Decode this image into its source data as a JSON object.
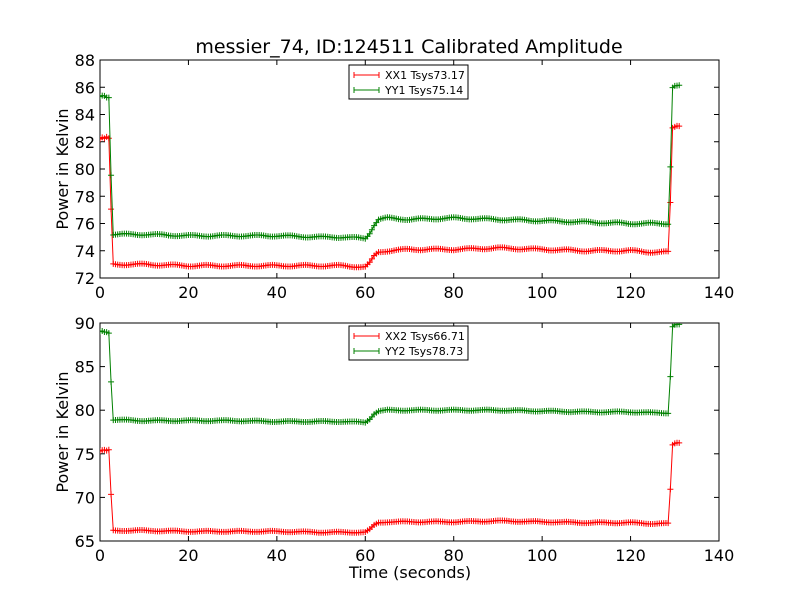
{
  "figure": {
    "title": "messier_74, ID:124511 Calibrated Amplitude",
    "xlabel": "Time (seconds)"
  },
  "chart_data": [
    {
      "type": "line",
      "title": "messier_74, ID:124511 Calibrated Amplitude",
      "xlabel": "",
      "ylabel": "Power in Kelvin",
      "xlim": [
        0,
        140
      ],
      "ylim": [
        72,
        88
      ],
      "xticks": [
        0,
        20,
        40,
        60,
        80,
        100,
        120,
        140
      ],
      "yticks": [
        72,
        74,
        76,
        78,
        80,
        82,
        84,
        86,
        88
      ],
      "legend": "top-center",
      "grid": false,
      "series": [
        {
          "name": "XX1 Tsys73.17",
          "color": "#ff0000",
          "marker": "+",
          "points": [
            [
              0,
              82.2
            ],
            [
              0.5,
              82.3
            ],
            [
              1,
              82.2
            ],
            [
              1.5,
              82.3
            ],
            [
              2,
              82.2
            ],
            [
              2.5,
              77.0
            ],
            [
              3,
              73.0
            ],
            [
              10,
              73.0
            ],
            [
              20,
              72.9
            ],
            [
              30,
              72.9
            ],
            [
              40,
              72.9
            ],
            [
              50,
              72.9
            ],
            [
              55,
              72.9
            ],
            [
              60,
              72.8
            ],
            [
              61,
              73.1
            ],
            [
              62,
              73.6
            ],
            [
              63,
              73.9
            ],
            [
              65,
              74.0
            ],
            [
              70,
              74.1
            ],
            [
              80,
              74.1
            ],
            [
              90,
              74.2
            ],
            [
              100,
              74.1
            ],
            [
              110,
              74.0
            ],
            [
              120,
              74.0
            ],
            [
              125,
              73.9
            ],
            [
              128.5,
              73.9
            ],
            [
              129,
              77.5
            ],
            [
              129.5,
              83.0
            ],
            [
              130,
              83.1
            ],
            [
              130.5,
              83.2
            ],
            [
              131,
              83.2
            ]
          ]
        },
        {
          "name": "YY1 Tsys75.14",
          "color": "#008000",
          "marker": "+",
          "points": [
            [
              0,
              85.3
            ],
            [
              0.5,
              85.4
            ],
            [
              1,
              85.4
            ],
            [
              1.5,
              85.3
            ],
            [
              2,
              85.3
            ],
            [
              2.5,
              79.6
            ],
            [
              3,
              75.2
            ],
            [
              10,
              75.2
            ],
            [
              20,
              75.1
            ],
            [
              30,
              75.1
            ],
            [
              40,
              75.1
            ],
            [
              50,
              75.0
            ],
            [
              55,
              75.0
            ],
            [
              60,
              74.9
            ],
            [
              61,
              75.3
            ],
            [
              62,
              75.9
            ],
            [
              63,
              76.3
            ],
            [
              65,
              76.4
            ],
            [
              70,
              76.3
            ],
            [
              80,
              76.4
            ],
            [
              90,
              76.3
            ],
            [
              100,
              76.2
            ],
            [
              110,
              76.1
            ],
            [
              120,
              76.0
            ],
            [
              125,
              76.0
            ],
            [
              128.5,
              76.0
            ],
            [
              129,
              80.2
            ],
            [
              129.5,
              86.0
            ],
            [
              130,
              86.1
            ],
            [
              130.5,
              86.1
            ],
            [
              131,
              86.1
            ]
          ]
        }
      ]
    },
    {
      "type": "line",
      "title": "",
      "xlabel": "Time (seconds)",
      "ylabel": "Power in Kelvin",
      "xlim": [
        0,
        140
      ],
      "ylim": [
        65,
        90
      ],
      "xticks": [
        0,
        20,
        40,
        60,
        80,
        100,
        120,
        140
      ],
      "yticks": [
        65,
        70,
        75,
        80,
        85,
        90
      ],
      "legend": "top-center",
      "grid": false,
      "series": [
        {
          "name": "XX2 Tsys66.71",
          "color": "#ff0000",
          "marker": "+",
          "points": [
            [
              0,
              75.3
            ],
            [
              0.5,
              75.4
            ],
            [
              1,
              75.4
            ],
            [
              1.5,
              75.3
            ],
            [
              2,
              75.4
            ],
            [
              2.5,
              70.3
            ],
            [
              3,
              66.2
            ],
            [
              10,
              66.2
            ],
            [
              20,
              66.1
            ],
            [
              30,
              66.1
            ],
            [
              40,
              66.1
            ],
            [
              50,
              66.0
            ],
            [
              55,
              66.0
            ],
            [
              60,
              66.0
            ],
            [
              61,
              66.3
            ],
            [
              62,
              66.8
            ],
            [
              63,
              67.1
            ],
            [
              65,
              67.2
            ],
            [
              70,
              67.2
            ],
            [
              80,
              67.2
            ],
            [
              90,
              67.3
            ],
            [
              100,
              67.2
            ],
            [
              110,
              67.1
            ],
            [
              120,
              67.1
            ],
            [
              125,
              67.0
            ],
            [
              128.5,
              67.0
            ],
            [
              129,
              70.9
            ],
            [
              129.5,
              76.0
            ],
            [
              130,
              76.2
            ],
            [
              130.5,
              76.3
            ],
            [
              131,
              76.3
            ]
          ]
        },
        {
          "name": "YY2 Tsys78.73",
          "color": "#008000",
          "marker": "+",
          "points": [
            [
              0,
              89.0
            ],
            [
              0.5,
              89.1
            ],
            [
              1,
              89.0
            ],
            [
              1.5,
              89.0
            ],
            [
              2,
              88.9
            ],
            [
              2.5,
              83.3
            ],
            [
              3,
              78.9
            ],
            [
              10,
              78.8
            ],
            [
              20,
              78.8
            ],
            [
              30,
              78.8
            ],
            [
              40,
              78.7
            ],
            [
              50,
              78.7
            ],
            [
              55,
              78.7
            ],
            [
              60,
              78.6
            ],
            [
              61,
              79.0
            ],
            [
              62,
              79.6
            ],
            [
              63,
              79.9
            ],
            [
              65,
              80.0
            ],
            [
              70,
              80.0
            ],
            [
              80,
              80.0
            ],
            [
              90,
              80.0
            ],
            [
              100,
              79.9
            ],
            [
              110,
              79.8
            ],
            [
              120,
              79.8
            ],
            [
              125,
              79.7
            ],
            [
              128.5,
              79.7
            ],
            [
              129,
              83.9
            ],
            [
              129.5,
              89.6
            ],
            [
              130,
              89.8
            ],
            [
              130.5,
              89.8
            ],
            [
              131,
              89.8
            ]
          ]
        }
      ]
    }
  ]
}
